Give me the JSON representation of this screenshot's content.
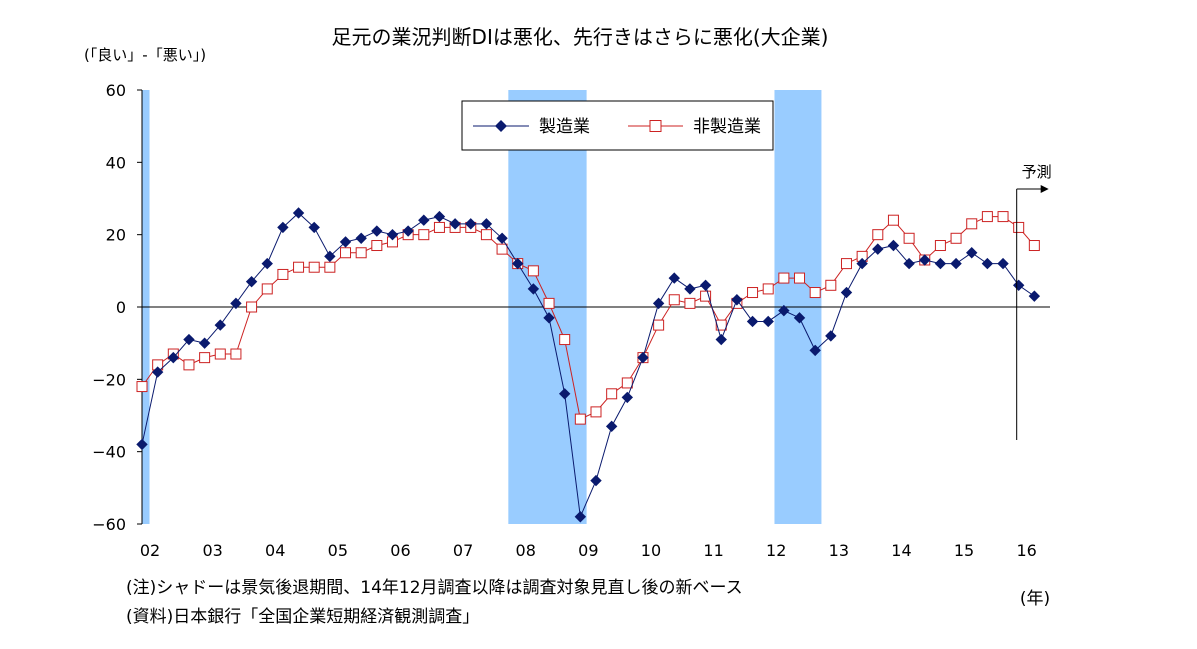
{
  "chart_data": {
    "type": "line",
    "title": "足元の業況判断DIは悪化、先行きはさらに悪化(大企業)",
    "ylabel": "(「良い」-「悪い」)",
    "xlabel": "(年)",
    "ylim": [
      -60,
      60
    ],
    "yticks": [
      60,
      40,
      20,
      0,
      -20,
      -40,
      -60
    ],
    "ytick_labels": [
      "60",
      "40",
      "20",
      "0",
      "−20",
      "−40",
      "−60"
    ],
    "xlim": [
      2002.0,
      2016.5
    ],
    "xtick_labels": [
      "02",
      "03",
      "04",
      "05",
      "06",
      "07",
      "08",
      "09",
      "10",
      "11",
      "12",
      "13",
      "14",
      "15",
      "16"
    ],
    "grid": false,
    "legend_position": "top-center",
    "colors": {
      "manufacturing": "#0a1a6e",
      "non_manufacturing": "#cc2222",
      "shading": "#99ccff"
    },
    "shaded_periods": [
      [
        2002.0,
        2002.12
      ],
      [
        2007.85,
        2009.1
      ],
      [
        2012.1,
        2012.85
      ]
    ],
    "forecast_label": "予測",
    "forecast_x": 2016.0,
    "series": [
      {
        "name": "製造業",
        "marker": "filled-diamond",
        "x": [
          2002.0,
          2002.25,
          2002.5,
          2002.75,
          2003.0,
          2003.25,
          2003.5,
          2003.75,
          2004.0,
          2004.25,
          2004.5,
          2004.75,
          2005.0,
          2005.25,
          2005.5,
          2005.75,
          2006.0,
          2006.25,
          2006.5,
          2006.75,
          2007.0,
          2007.25,
          2007.5,
          2007.75,
          2008.0,
          2008.25,
          2008.5,
          2008.75,
          2009.0,
          2009.25,
          2009.5,
          2009.75,
          2010.0,
          2010.25,
          2010.5,
          2010.75,
          2011.0,
          2011.25,
          2011.5,
          2011.75,
          2012.0,
          2012.25,
          2012.5,
          2012.75,
          2013.0,
          2013.25,
          2013.5,
          2013.75,
          2014.0,
          2014.25,
          2014.5,
          2014.75,
          2015.0,
          2015.25,
          2015.5,
          2015.75,
          2016.0,
          2016.25
        ],
        "values": [
          -38,
          -18,
          -14,
          -9,
          -10,
          -5,
          1,
          7,
          12,
          22,
          26,
          22,
          14,
          18,
          19,
          21,
          20,
          21,
          24,
          25,
          23,
          23,
          23,
          19,
          12,
          5,
          -3,
          -24,
          -58,
          -48,
          -33,
          -25,
          -14,
          1,
          8,
          5,
          6,
          -9,
          2,
          -4,
          -4,
          -1,
          -3,
          -12,
          -8,
          4,
          12,
          16,
          17,
          12,
          13,
          12,
          12,
          15,
          12,
          12,
          6,
          3
        ]
      },
      {
        "name": "非製造業",
        "marker": "open-square",
        "x": [
          2002.0,
          2002.25,
          2002.5,
          2002.75,
          2003.0,
          2003.25,
          2003.5,
          2003.75,
          2004.0,
          2004.25,
          2004.5,
          2004.75,
          2005.0,
          2005.25,
          2005.5,
          2005.75,
          2006.0,
          2006.25,
          2006.5,
          2006.75,
          2007.0,
          2007.25,
          2007.5,
          2007.75,
          2008.0,
          2008.25,
          2008.5,
          2008.75,
          2009.0,
          2009.25,
          2009.5,
          2009.75,
          2010.0,
          2010.25,
          2010.5,
          2010.75,
          2011.0,
          2011.25,
          2011.5,
          2011.75,
          2012.0,
          2012.25,
          2012.5,
          2012.75,
          2013.0,
          2013.25,
          2013.5,
          2013.75,
          2014.0,
          2014.25,
          2014.5,
          2014.75,
          2015.0,
          2015.25,
          2015.5,
          2015.75,
          2016.0,
          2016.25
        ],
        "values": [
          -22,
          -16,
          -13,
          -16,
          -14,
          -13,
          -13,
          0,
          5,
          9,
          11,
          11,
          11,
          15,
          15,
          17,
          18,
          20,
          20,
          22,
          22,
          22,
          20,
          16,
          12,
          10,
          1,
          -9,
          -31,
          -29,
          -24,
          -21,
          -14,
          -5,
          2,
          1,
          3,
          -5,
          1,
          4,
          5,
          8,
          8,
          4,
          6,
          12,
          14,
          20,
          24,
          19,
          13,
          17,
          19,
          23,
          25,
          25,
          22,
          17
        ]
      }
    ]
  },
  "notes": [
    "(注)シャドーは景気後退期間、14年12月調査以降は調査対象見直し後の新ベース",
    "(資料)日本銀行「全国企業短期経済観測調査」"
  ]
}
